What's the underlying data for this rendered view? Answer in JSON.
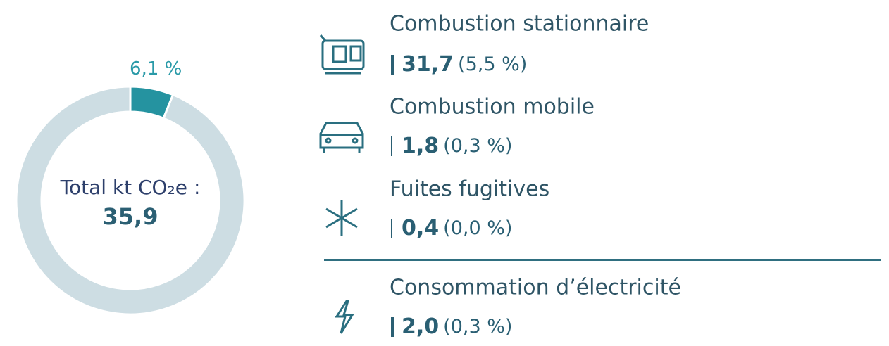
{
  "chart_data": {
    "type": "donut",
    "values": [
      6.1,
      93.9
    ],
    "value_labels": [
      "6,1 %",
      null
    ],
    "colors": [
      "#2593a0",
      "#cddde3"
    ],
    "center_label": "Total kt CO₂e :",
    "center_value": "35,9"
  },
  "breakdown": {
    "items": [
      {
        "label": "Combustion stationnaire",
        "value": "31,7",
        "share": "(5,5 %)"
      },
      {
        "label": "Combustion mobile",
        "value": "1,8",
        "share": "(0,3 %)"
      },
      {
        "label": "Fuites fugitives",
        "value": "0,4",
        "share": "(0,0 %)"
      },
      {
        "label": "Consommation d’électricité",
        "value": "2,0",
        "share": "(0,3 %)"
      }
    ]
  }
}
